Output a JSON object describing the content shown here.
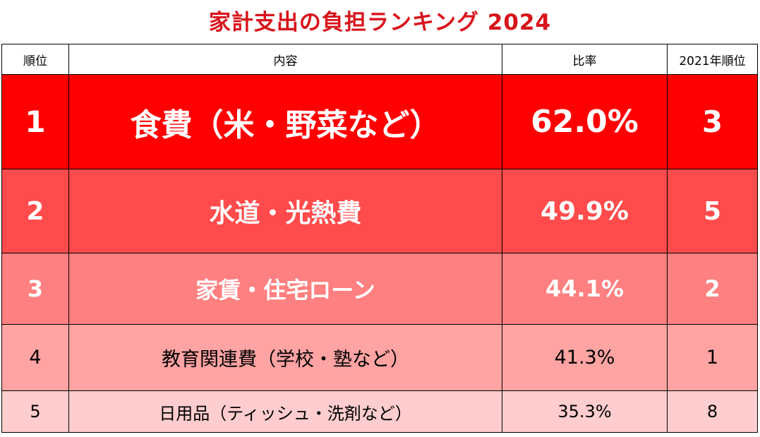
{
  "title": "家計支出の負担ランキング 2024",
  "headers": {
    "rank": "順位",
    "content": "内容",
    "ratio": "比率",
    "rank_2021": "2021年順位"
  },
  "rows": [
    {
      "rank": "1",
      "content": "食費（米・野菜など）",
      "ratio": "62.0%",
      "rank_2021": "3"
    },
    {
      "rank": "2",
      "content": "水道・光熱費",
      "ratio": "49.9%",
      "rank_2021": "5"
    },
    {
      "rank": "3",
      "content": "家賃・住宅ローン",
      "ratio": "44.1%",
      "rank_2021": "2"
    },
    {
      "rank": "4",
      "content": "教育関連費（学校・塾など）",
      "ratio": "41.3%",
      "rank_2021": "1"
    },
    {
      "rank": "5",
      "content": "日用品（ティッシュ・洗剤など）",
      "ratio": "35.3%",
      "rank_2021": "8"
    }
  ],
  "colors": {
    "title": "#d8141c",
    "row1": "#ff0000",
    "row2": "#ff4b4b",
    "row3": "#ff8080",
    "row4": "#ffa3a3",
    "row5": "#ffcdcd"
  }
}
